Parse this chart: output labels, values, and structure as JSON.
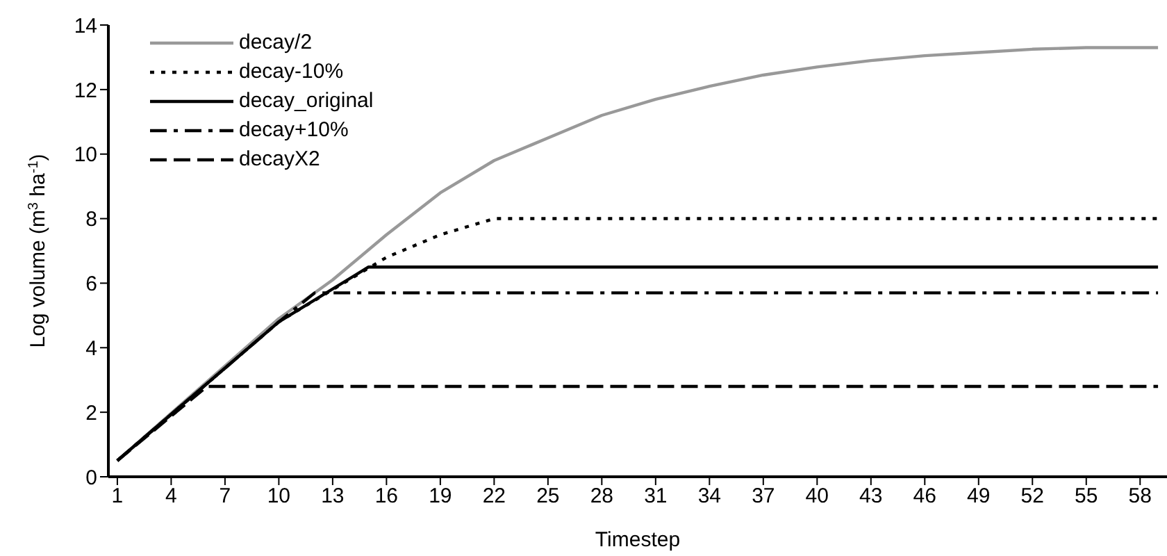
{
  "chart_data": {
    "type": "line",
    "xlabel": "Timestep",
    "ylabel": "Log volume (m$^{3}$ ha$^{-1}$)",
    "xlim": [
      0.5,
      59.5
    ],
    "xticks": [
      1,
      4,
      7,
      10,
      13,
      16,
      19,
      22,
      25,
      28,
      31,
      34,
      37,
      40,
      43,
      46,
      49,
      52,
      55,
      58
    ],
    "ylim": [
      0,
      14
    ],
    "yticks": [
      0,
      2,
      4,
      6,
      8,
      10,
      12,
      14
    ],
    "grid": false,
    "legend": "top left",
    "marker": "none",
    "series": [
      {
        "name": "decay/2",
        "color": "#999999",
        "line_style": "solid",
        "x": [
          1,
          10,
          13,
          16,
          19,
          22,
          25,
          28,
          31,
          34,
          37,
          40,
          43,
          46,
          49,
          52,
          55,
          58,
          59
        ],
        "values": [
          0.5,
          4.9,
          6.1,
          7.5,
          8.8,
          9.8,
          10.5,
          11.2,
          11.7,
          12.1,
          12.45,
          12.7,
          12.9,
          13.05,
          13.15,
          13.25,
          13.3,
          13.3,
          13.3
        ]
      },
      {
        "name": "decay-10%",
        "color": "#000000",
        "line_style": "dotted",
        "x": [
          1,
          10,
          13,
          16,
          19,
          22,
          59
        ],
        "values": [
          0.5,
          4.8,
          5.8,
          6.8,
          7.5,
          8.0,
          8.0
        ]
      },
      {
        "name": "decay_original",
        "color": "#000000",
        "line_style": "solid",
        "x": [
          1,
          10,
          15,
          59
        ],
        "values": [
          0.5,
          4.8,
          6.5,
          6.5
        ]
      },
      {
        "name": "decay+10%",
        "color": "#000000",
        "line_style": "dashdot",
        "x": [
          1,
          10,
          12,
          59
        ],
        "values": [
          0.5,
          4.8,
          5.7,
          5.7
        ]
      },
      {
        "name": "decayX2",
        "color": "#000000",
        "line_style": "dashed",
        "x": [
          1,
          6,
          59
        ],
        "values": [
          0.5,
          2.8,
          2.8
        ]
      }
    ]
  }
}
